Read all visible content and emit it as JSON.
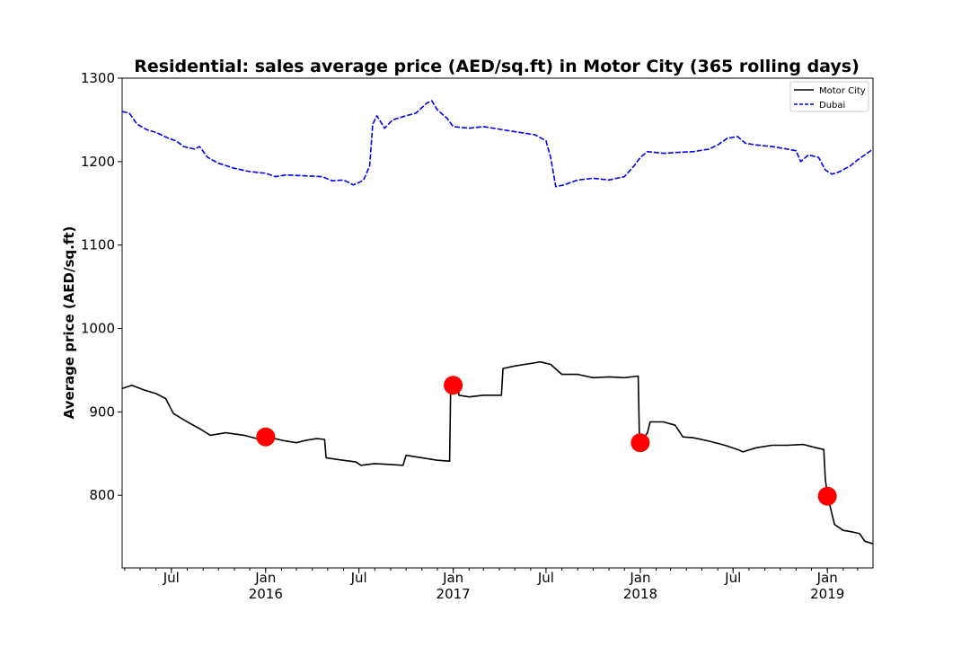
{
  "chart_data": {
    "type": "line",
    "title": "Residential: sales average price (AED/sq.ft) in Motor City (365 rolling days)",
    "xlabel": "",
    "ylabel": "Average price (AED/sq.ft)",
    "xlim": [
      "2015-03-27",
      "2019-03-31"
    ],
    "ylim": [
      713,
      1300
    ],
    "yticks": [
      800,
      900,
      1000,
      1100,
      1200,
      1300
    ],
    "xticks": [
      {
        "date": "2015-07-01",
        "label": "Jul",
        "sublabel": ""
      },
      {
        "date": "2016-01-01",
        "label": "Jan",
        "sublabel": "2016"
      },
      {
        "date": "2016-07-01",
        "label": "Jul",
        "sublabel": ""
      },
      {
        "date": "2017-01-01",
        "label": "Jan",
        "sublabel": "2017"
      },
      {
        "date": "2017-07-01",
        "label": "Jul",
        "sublabel": ""
      },
      {
        "date": "2018-01-01",
        "label": "Jan",
        "sublabel": "2018"
      },
      {
        "date": "2018-07-01",
        "label": "Jul",
        "sublabel": ""
      },
      {
        "date": "2019-01-01",
        "label": "Jan",
        "sublabel": "2019"
      }
    ],
    "legend_position": "top-right",
    "series": [
      {
        "name": "Motor City",
        "color": "#000000",
        "dash": "solid",
        "points": [
          [
            "2015-03-27",
            928
          ],
          [
            "2015-04-15",
            932
          ],
          [
            "2015-05-10",
            926
          ],
          [
            "2015-06-01",
            922
          ],
          [
            "2015-06-20",
            916
          ],
          [
            "2015-07-05",
            898
          ],
          [
            "2015-08-01",
            888
          ],
          [
            "2015-08-25",
            880
          ],
          [
            "2015-09-15",
            872
          ],
          [
            "2015-10-15",
            875
          ],
          [
            "2015-11-20",
            872
          ],
          [
            "2015-12-15",
            868
          ],
          [
            "2016-01-05",
            870
          ],
          [
            "2016-02-01",
            866
          ],
          [
            "2016-03-01",
            863
          ],
          [
            "2016-03-20",
            866
          ],
          [
            "2016-04-10",
            868
          ],
          [
            "2016-04-25",
            867
          ],
          [
            "2016-04-28",
            845
          ],
          [
            "2016-05-20",
            843
          ],
          [
            "2016-06-25",
            840
          ],
          [
            "2016-07-05",
            836
          ],
          [
            "2016-08-01",
            838
          ],
          [
            "2016-09-01",
            837
          ],
          [
            "2016-09-25",
            836
          ],
          [
            "2016-10-01",
            848
          ],
          [
            "2016-11-01",
            845
          ],
          [
            "2016-12-01",
            842
          ],
          [
            "2016-12-25",
            841
          ],
          [
            "2016-12-27",
            930
          ],
          [
            "2017-01-01",
            933
          ],
          [
            "2017-01-10",
            938
          ],
          [
            "2017-01-12",
            920
          ],
          [
            "2017-02-01",
            918
          ],
          [
            "2017-03-01",
            920
          ],
          [
            "2017-04-05",
            920
          ],
          [
            "2017-04-08",
            952
          ],
          [
            "2017-05-01",
            955
          ],
          [
            "2017-06-01",
            958
          ],
          [
            "2017-06-20",
            960
          ],
          [
            "2017-07-10",
            957
          ],
          [
            "2017-08-01",
            945
          ],
          [
            "2017-09-01",
            945
          ],
          [
            "2017-10-01",
            941
          ],
          [
            "2017-11-01",
            942
          ],
          [
            "2017-12-01",
            941
          ],
          [
            "2017-12-28",
            943
          ],
          [
            "2017-12-30",
            875
          ],
          [
            "2018-01-01",
            863
          ],
          [
            "2018-01-15",
            875
          ],
          [
            "2018-01-20",
            888
          ],
          [
            "2018-02-15",
            888
          ],
          [
            "2018-03-10",
            884
          ],
          [
            "2018-03-25",
            870
          ],
          [
            "2018-04-15",
            869
          ],
          [
            "2018-05-15",
            865
          ],
          [
            "2018-06-15",
            860
          ],
          [
            "2018-07-10",
            855
          ],
          [
            "2018-07-20",
            852
          ],
          [
            "2018-08-15",
            857
          ],
          [
            "2018-09-15",
            860
          ],
          [
            "2018-10-15",
            860
          ],
          [
            "2018-11-15",
            861
          ],
          [
            "2018-12-10",
            857
          ],
          [
            "2018-12-25",
            855
          ],
          [
            "2018-12-28",
            820
          ],
          [
            "2019-01-01",
            800
          ],
          [
            "2019-01-15",
            765
          ],
          [
            "2019-02-01",
            758
          ],
          [
            "2019-02-20",
            756
          ],
          [
            "2019-03-05",
            754
          ],
          [
            "2019-03-15",
            745
          ],
          [
            "2019-03-31",
            742
          ]
        ]
      },
      {
        "name": "Dubai",
        "color": "#0000ff",
        "dash": "dashed",
        "points": [
          [
            "2015-03-27",
            1260
          ],
          [
            "2015-04-10",
            1258
          ],
          [
            "2015-04-25",
            1245
          ],
          [
            "2015-05-15",
            1238
          ],
          [
            "2015-06-01",
            1235
          ],
          [
            "2015-06-25",
            1228
          ],
          [
            "2015-07-10",
            1225
          ],
          [
            "2015-07-25",
            1218
          ],
          [
            "2015-08-15",
            1215
          ],
          [
            "2015-08-25",
            1218
          ],
          [
            "2015-09-10",
            1205
          ],
          [
            "2015-10-01",
            1198
          ],
          [
            "2015-11-01",
            1192
          ],
          [
            "2015-12-01",
            1188
          ],
          [
            "2016-01-01",
            1186
          ],
          [
            "2016-01-20",
            1182
          ],
          [
            "2016-02-10",
            1184
          ],
          [
            "2016-03-15",
            1183
          ],
          [
            "2016-04-20",
            1182
          ],
          [
            "2016-05-10",
            1177
          ],
          [
            "2016-06-01",
            1178
          ],
          [
            "2016-06-20",
            1172
          ],
          [
            "2016-07-01",
            1175
          ],
          [
            "2016-07-10",
            1178
          ],
          [
            "2016-07-22",
            1195
          ],
          [
            "2016-07-28",
            1245
          ],
          [
            "2016-08-05",
            1255
          ],
          [
            "2016-08-20",
            1240
          ],
          [
            "2016-09-05",
            1250
          ],
          [
            "2016-10-01",
            1255
          ],
          [
            "2016-10-20",
            1258
          ],
          [
            "2016-11-10",
            1270
          ],
          [
            "2016-11-20",
            1273
          ],
          [
            "2016-12-01",
            1262
          ],
          [
            "2016-12-20",
            1252
          ],
          [
            "2017-01-01",
            1242
          ],
          [
            "2017-02-01",
            1240
          ],
          [
            "2017-03-01",
            1242
          ],
          [
            "2017-04-10",
            1238
          ],
          [
            "2017-05-10",
            1235
          ],
          [
            "2017-06-10",
            1232
          ],
          [
            "2017-07-01",
            1225
          ],
          [
            "2017-07-10",
            1205
          ],
          [
            "2017-07-20",
            1170
          ],
          [
            "2017-08-05",
            1172
          ],
          [
            "2017-09-01",
            1178
          ],
          [
            "2017-10-01",
            1180
          ],
          [
            "2017-11-01",
            1178
          ],
          [
            "2017-12-01",
            1182
          ],
          [
            "2017-12-20",
            1195
          ],
          [
            "2018-01-01",
            1205
          ],
          [
            "2018-01-15",
            1212
          ],
          [
            "2018-02-15",
            1210
          ],
          [
            "2018-03-15",
            1211
          ],
          [
            "2018-04-15",
            1212
          ],
          [
            "2018-05-15",
            1215
          ],
          [
            "2018-06-01",
            1220
          ],
          [
            "2018-06-20",
            1228
          ],
          [
            "2018-07-10",
            1230
          ],
          [
            "2018-07-25",
            1222
          ],
          [
            "2018-08-15",
            1220
          ],
          [
            "2018-09-15",
            1218
          ],
          [
            "2018-10-15",
            1215
          ],
          [
            "2018-11-01",
            1213
          ],
          [
            "2018-11-10",
            1200
          ],
          [
            "2018-11-25",
            1208
          ],
          [
            "2018-12-15",
            1205
          ],
          [
            "2018-12-28",
            1190
          ],
          [
            "2019-01-10",
            1185
          ],
          [
            "2019-01-25",
            1188
          ],
          [
            "2019-02-15",
            1195
          ],
          [
            "2019-03-01",
            1202
          ],
          [
            "2019-03-15",
            1208
          ],
          [
            "2019-03-31",
            1215
          ]
        ]
      }
    ],
    "markers": {
      "color": "#ff0000",
      "points": [
        [
          "2016-01-01",
          870
        ],
        [
          "2017-01-01",
          932
        ],
        [
          "2018-01-01",
          863
        ],
        [
          "2019-01-01",
          799
        ]
      ]
    }
  }
}
